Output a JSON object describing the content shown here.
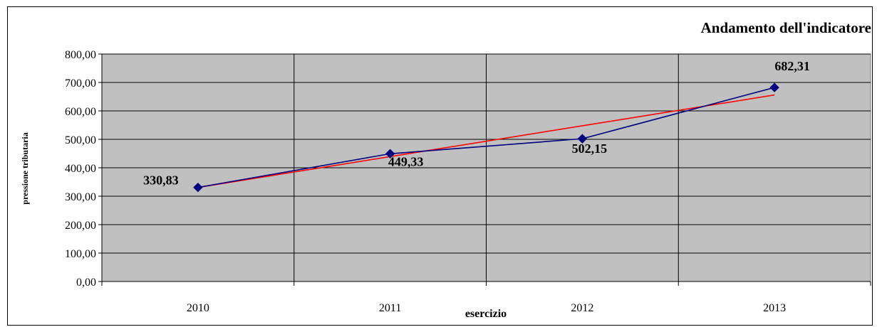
{
  "chart_data": {
    "type": "line",
    "title": "Andamento dell'indicatore",
    "xlabel": "esercizio",
    "ylabel": "pressione tributaria",
    "categories": [
      "2010",
      "2011",
      "2012",
      "2013"
    ],
    "yticks": [
      "0,00",
      "100,00",
      "200,00",
      "300,00",
      "400,00",
      "500,00",
      "600,00",
      "700,00",
      "800,00"
    ],
    "ylim": [
      0,
      800
    ],
    "grid": true,
    "legend": "none",
    "series": [
      {
        "values": [
          330.83,
          449.33,
          502.15,
          682.31
        ],
        "labels": [
          "330,83",
          "449,33",
          "502,15",
          "682,31"
        ],
        "color": "#000080",
        "marker": "diamond"
      },
      {
        "type": "trendline",
        "values": [
          330.8,
          439.2,
          547.6,
          656.0
        ],
        "color": "#ff0000"
      }
    ],
    "colors": {
      "plot_background": "#c0c0c0",
      "grid": "#000000"
    }
  }
}
